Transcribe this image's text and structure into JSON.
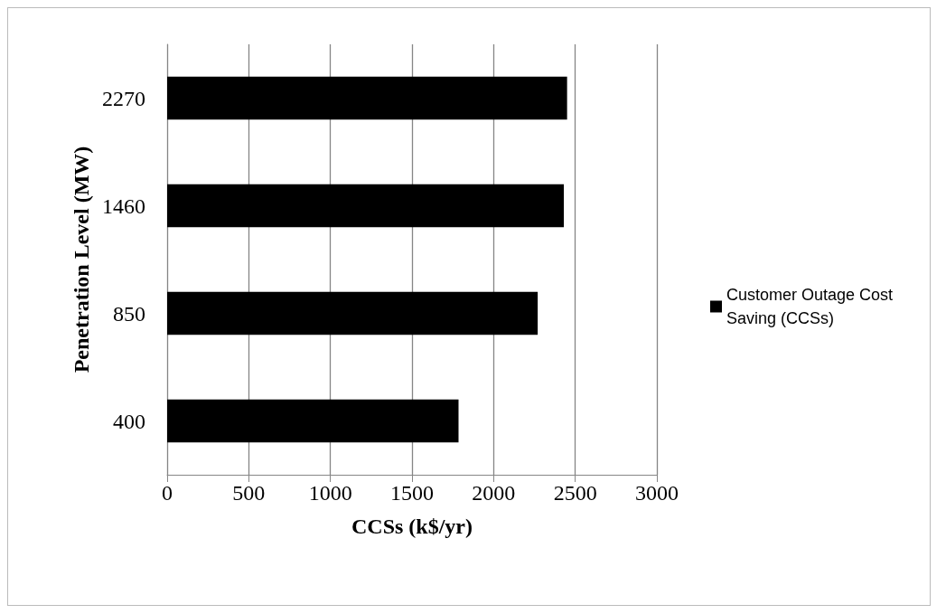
{
  "chart_data": {
    "type": "bar",
    "orientation": "horizontal",
    "categories": [
      "2270",
      "1460",
      "850",
      "400"
    ],
    "series": [
      {
        "name": "Customer Outage Cost Saving (CCSs)",
        "color": "#000000",
        "values": [
          2450,
          2430,
          2270,
          1785
        ]
      }
    ],
    "xlabel": "CCSs (k$/yr)",
    "ylabel": "Penetration Level (MW)",
    "xlim": [
      0,
      3000
    ],
    "xticks": [
      0,
      500,
      1000,
      1500,
      2000,
      2500,
      3000
    ],
    "grid": "x",
    "legend": "right"
  }
}
